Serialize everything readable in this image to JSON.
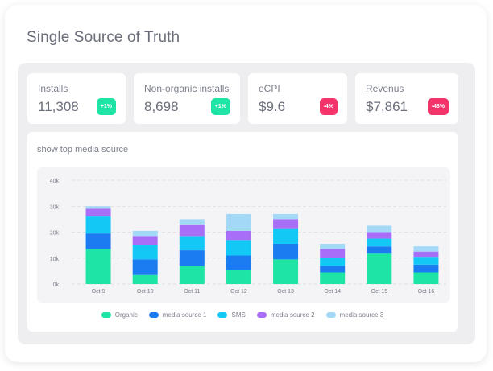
{
  "title": "Single Source of Truth",
  "kpis": [
    {
      "label": "Installs",
      "value": "11,308",
      "badge": "+1%",
      "trend": "pos"
    },
    {
      "label": "Non-organic installs",
      "value": "8,698",
      "badge": "+1%",
      "trend": "pos"
    },
    {
      "label": "eCPI",
      "value": "$9.6",
      "badge": "-4%",
      "trend": "neg"
    },
    {
      "label": "Revenus",
      "value": "$7,861",
      "badge": "-48%",
      "trend": "neg"
    }
  ],
  "chart_title": "show top media source",
  "colors": {
    "positive": "#1ee4a6",
    "negative": "#f2346b"
  },
  "chart_data": {
    "type": "bar",
    "stacked": true,
    "categories": [
      "Oct 9",
      "Oct 10",
      "Oct 11",
      "Oct 12",
      "Oct 13",
      "Oct 14",
      "Oct 15",
      "Oct 16"
    ],
    "yticks": [
      "0k",
      "10k",
      "20k",
      "30k",
      "40k"
    ],
    "ylim": [
      0,
      40000
    ],
    "grid": true,
    "legend_position": "bottom",
    "series": [
      {
        "name": "Organic",
        "color": "#1ee4a6",
        "values": [
          13500,
          3500,
          7000,
          5500,
          9500,
          4500,
          12000,
          4500
        ]
      },
      {
        "name": "media source 1",
        "color": "#1a7cf0",
        "values": [
          6000,
          6000,
          6000,
          5500,
          6000,
          2500,
          2500,
          3000
        ]
      },
      {
        "name": "SMS",
        "color": "#12c9f5",
        "values": [
          6500,
          5500,
          5500,
          6000,
          6000,
          3000,
          3000,
          3000
        ]
      },
      {
        "name": "media source 2",
        "color": "#a86ef5",
        "values": [
          3000,
          3500,
          4500,
          3500,
          3500,
          3500,
          2500,
          2000
        ]
      },
      {
        "name": "media source 3",
        "color": "#a3d8f7",
        "values": [
          1000,
          2000,
          2000,
          6500,
          2000,
          2000,
          2500,
          2000
        ]
      }
    ]
  }
}
